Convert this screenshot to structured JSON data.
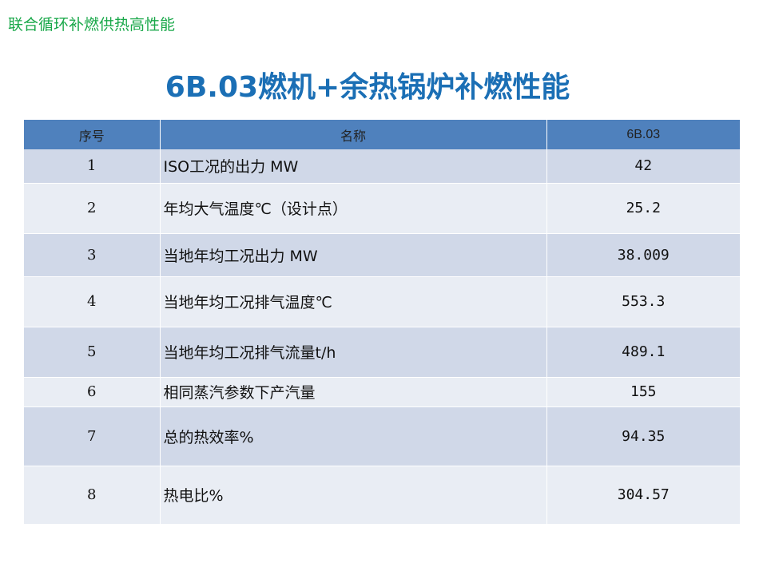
{
  "header": {
    "top_title": "联合循环补燃供热高性能",
    "slide_title": "6B.03燃机+余热锅炉补燃性能"
  },
  "table": {
    "columns": [
      "序号",
      "名称",
      "6B.03"
    ],
    "rows": [
      {
        "index": "1",
        "name": "ISO工况的出力 MW",
        "value": "42"
      },
      {
        "index": "2",
        "name": "年均大气温度℃（设计点）",
        "value": "25.2"
      },
      {
        "index": "3",
        "name": "当地年均工况出力 MW",
        "value": "38.009"
      },
      {
        "index": "4",
        "name": "当地年均工况排气温度℃",
        "value": "553.3"
      },
      {
        "index": "5",
        "name": "当地年均工况排气流量t/h",
        "value": "489.1"
      },
      {
        "index": "6",
        "name": "相同蒸汽参数下产汽量",
        "value": "155"
      },
      {
        "index": "7",
        "name": "总的热效率%",
        "value": "94.35"
      },
      {
        "index": "8",
        "name": "热电比%",
        "value": "304.57"
      }
    ]
  },
  "colors": {
    "top_title": "#1aa84a",
    "slide_title": "#1b6fb5",
    "header_row": "#4f81bd",
    "row_odd": "#d0d8e8",
    "row_even": "#e9edf4"
  }
}
